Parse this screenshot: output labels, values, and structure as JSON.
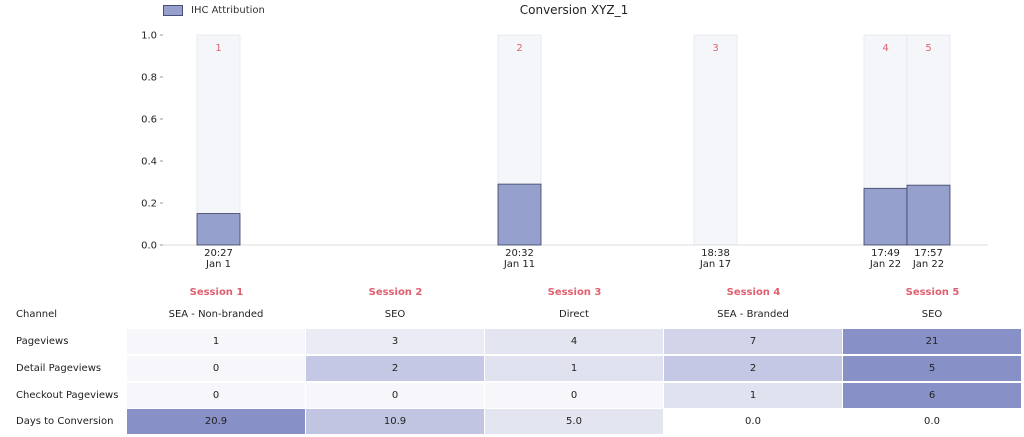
{
  "chart_data": {
    "type": "bar",
    "title": "Conversion XYZ_1",
    "legend": {
      "label": "IHC Attribution",
      "position": "top-left"
    },
    "ylim": [
      0,
      1.0
    ],
    "yticks": [
      "0.0",
      "0.2",
      "0.4",
      "0.6",
      "0.8",
      "1.0"
    ],
    "grid": false,
    "sessions": [
      {
        "number": "1",
        "time": "20:27",
        "date": "Jan 1",
        "value": 0.15
      },
      {
        "number": "2",
        "time": "20:32",
        "date": "Jan 11",
        "value": 0.29
      },
      {
        "number": "3",
        "time": "18:38",
        "date": "Jan 17",
        "value": 0.0
      },
      {
        "number": "4",
        "time": "17:49",
        "date": "Jan 22",
        "value": 0.27
      },
      {
        "number": "5",
        "time": "17:57",
        "date": "Jan 22",
        "value": 0.285
      }
    ]
  },
  "table": {
    "session_headers": [
      "Session 1",
      "Session 2",
      "Session 3",
      "Session 4",
      "Session 5"
    ],
    "channel": {
      "label": "Channel",
      "values": [
        "SEA - Non-branded",
        "SEO",
        "Direct",
        "SEA - Branded",
        "SEO"
      ]
    },
    "rows": [
      {
        "label": "Pageviews",
        "values": [
          "1",
          "3",
          "4",
          "7",
          "21"
        ],
        "colors": [
          "#f7f7fb",
          "#eaebf4",
          "#e3e5f1",
          "#d2d5ea",
          "#8891c7"
        ]
      },
      {
        "label": "Detail Pageviews",
        "values": [
          "0",
          "2",
          "1",
          "2",
          "5"
        ],
        "colors": [
          "#f7f7fb",
          "#c4c8e4",
          "#e0e2f0",
          "#c4c8e4",
          "#8891c7"
        ]
      },
      {
        "label": "Checkout Pageviews",
        "values": [
          "0",
          "0",
          "0",
          "1",
          "6"
        ],
        "colors": [
          "#f7f7fb",
          "#f7f7fb",
          "#f7f7fb",
          "#e0e2f0",
          "#8891c7"
        ]
      },
      {
        "label": "Days to Conversion",
        "values": [
          "20.9",
          "10.9",
          "5.0",
          "0.0",
          "0.0"
        ],
        "colors": [
          "#8891c7",
          "#c1c5e2",
          "#e3e5f1",
          "#ffffff",
          "#ffffff"
        ]
      }
    ]
  },
  "colors": {
    "bar_fill": "#96a0cd",
    "bar_stroke": "#3d4160",
    "session_band": "#f5f6fa",
    "session_label": "#e0606f"
  }
}
